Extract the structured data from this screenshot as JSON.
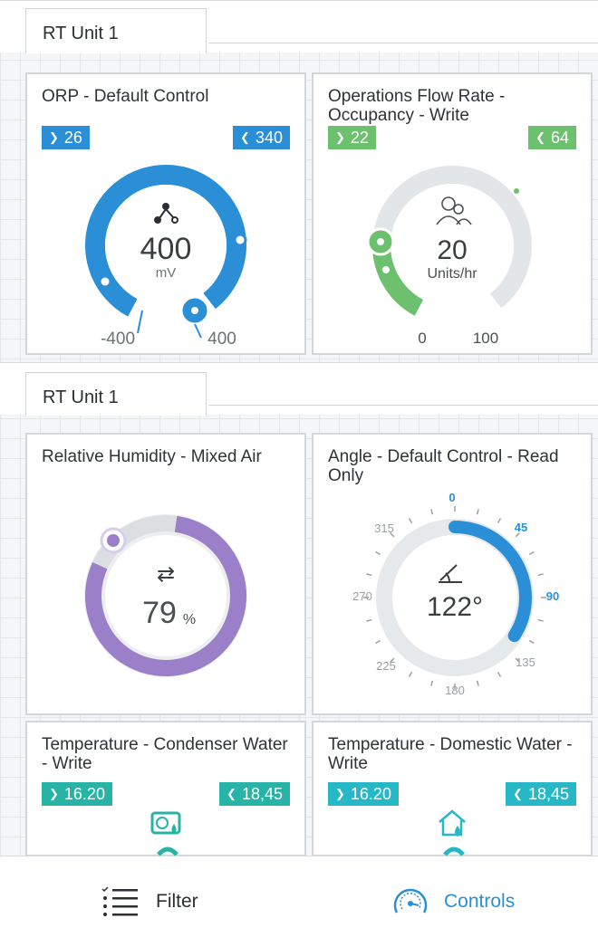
{
  "sections": [
    {
      "title": "RT Unit 1"
    },
    {
      "title": "RT Unit 1"
    }
  ],
  "cards": {
    "orp": {
      "title": "ORP - Default Control",
      "low": "26",
      "high": "340",
      "value": "400",
      "unit": "mV",
      "min_label": "-400",
      "max_label": "400",
      "icon": "network-icon",
      "color": "#2a8fd6"
    },
    "flow": {
      "title": "Operations Flow Rate - Occupancy - Write",
      "low": "22",
      "high": "64",
      "value": "20",
      "unit": "Units/hr",
      "min_label": "0",
      "max_label": "100",
      "icon": "people-icon",
      "color": "#6cc06e"
    },
    "humidity": {
      "title": "Relative Humidity - Mixed Air",
      "value": "79",
      "unit": "%",
      "icon": "shuffle-icon",
      "color": "#9b7fc9"
    },
    "angle": {
      "title": "Angle - Default Control - Read Only",
      "value": "122°",
      "ticks": [
        "0",
        "45",
        "90",
        "135",
        "180",
        "225",
        "270",
        "315"
      ],
      "icon": "angle-icon",
      "color": "#2a8fd6"
    },
    "temp_condenser": {
      "title": "Temperature - Condenser Water - Write",
      "low": "16.20",
      "high": "18,45",
      "icon": "condenser-icon",
      "color": "#27b3a5"
    },
    "temp_domestic": {
      "title": "Temperature - Domestic Water - Write",
      "low": "16.20",
      "high": "18,45",
      "icon": "domestic-water-icon",
      "color": "#27b8c8"
    }
  },
  "nav": {
    "filter_label": "Filter",
    "controls_label": "Controls",
    "accent": "#2a8fd6"
  }
}
